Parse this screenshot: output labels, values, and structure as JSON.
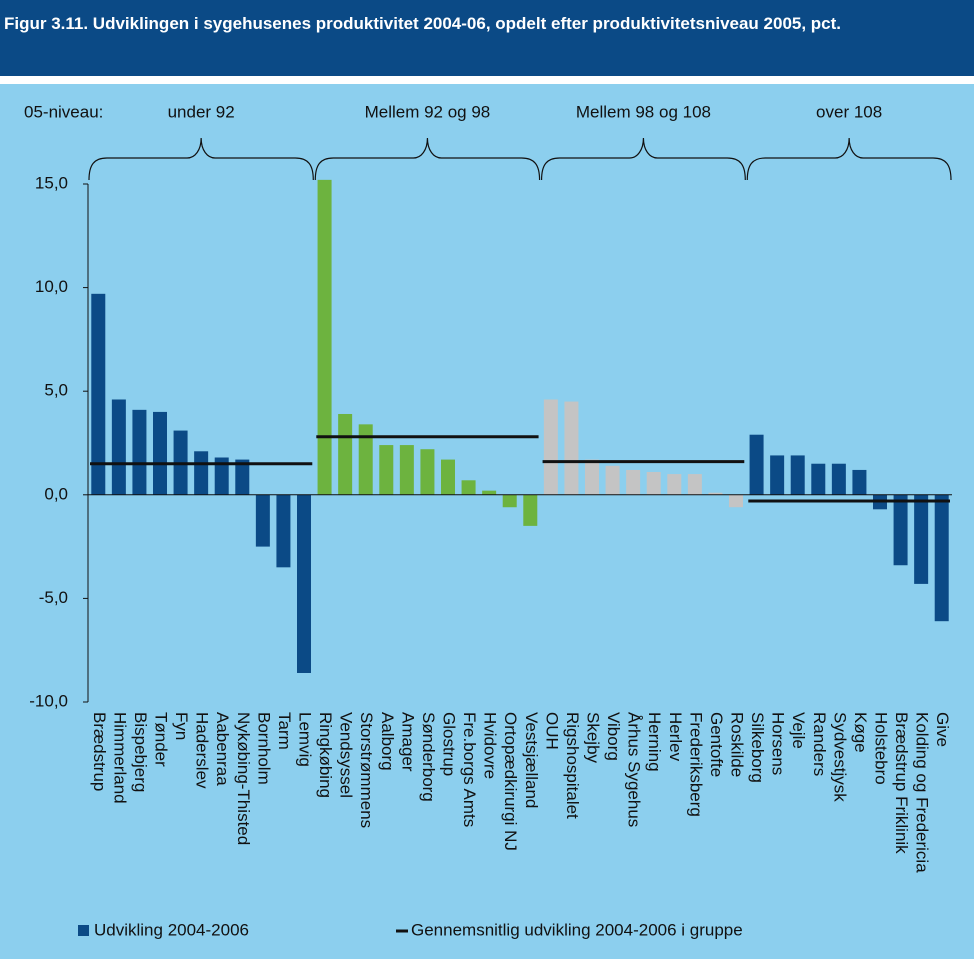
{
  "chart_data": {
    "type": "bar",
    "title": "Figur 3.11. Udviklingen i sygehusenes produktivitet 2004-06, opdelt efter produktivitetsniveau 2005, pct.",
    "level_label": "05-niveau:",
    "series_name": "Udvikling 2004-2006",
    "series_color": "#0b4a86",
    "average_name": "Gennemsnitlig udvikling 2004-2006 i gruppe",
    "average_color": "#111111",
    "ylim": [
      -10,
      15
    ],
    "yticks": [
      {
        "value": -10,
        "label": "-10,0"
      },
      {
        "value": -5,
        "label": "-5,0"
      },
      {
        "value": 0,
        "label": "0,0"
      },
      {
        "value": 5,
        "label": "5,0"
      },
      {
        "value": 10,
        "label": "10,0"
      },
      {
        "value": 15,
        "label": "15,0"
      }
    ],
    "groups": [
      {
        "label": "under 92",
        "color": "#0b4a86",
        "average": 1.5,
        "categories": [
          "Brædstrup",
          "Himmerland",
          "Bispebjerg",
          "Tønder",
          "Fyn",
          "Haderslev",
          "Aabenraa",
          "Nykøbing-Thisted",
          "Bornholm",
          "Tarm",
          "Lemvig"
        ],
        "values": [
          9.7,
          4.6,
          4.1,
          4.0,
          3.1,
          2.1,
          1.8,
          1.7,
          -2.5,
          -3.5,
          -8.6
        ]
      },
      {
        "label": "Mellem 92 og 98",
        "color": "#6db33f",
        "average": 2.8,
        "categories": [
          "Ringkøbing",
          "Vendsyssel",
          "Storstrømmens",
          "Aalborg",
          "Amager",
          "Sønderborg",
          "Glostrup",
          "Fre.borgs Amts",
          "Hvidovre",
          "Ortopædkirurgi NJ",
          "Vestsjælland"
        ],
        "values": [
          15.2,
          3.9,
          3.4,
          2.4,
          2.4,
          2.2,
          1.7,
          0.7,
          0.2,
          -0.6,
          -1.5
        ]
      },
      {
        "label": "Mellem 98 og 108",
        "color": "#c4c4c4",
        "average": 1.6,
        "categories": [
          "OUH",
          "Rigshospitalet",
          "Skejby",
          "Viborg",
          "Århus Sygehus",
          "Herning",
          "Herlev",
          "Frederiksberg",
          "Gentofte",
          "Roskilde"
        ],
        "values": [
          4.6,
          4.5,
          1.7,
          1.4,
          1.2,
          1.1,
          1.0,
          1.0,
          0.1,
          -0.6
        ]
      },
      {
        "label": "over 108",
        "color": "#0b4a86",
        "average": -0.3,
        "categories": [
          "Silkeborg",
          "Horsens",
          "Vejle",
          "Randers",
          "Sydvestjysk",
          "Køge",
          "Holstebro",
          "Brædstrup Friklinik",
          "Kolding og Fredericia",
          "Give"
        ],
        "values": [
          2.9,
          1.9,
          1.9,
          1.5,
          1.5,
          1.2,
          -0.7,
          -3.4,
          -4.3,
          -6.1
        ]
      }
    ]
  }
}
